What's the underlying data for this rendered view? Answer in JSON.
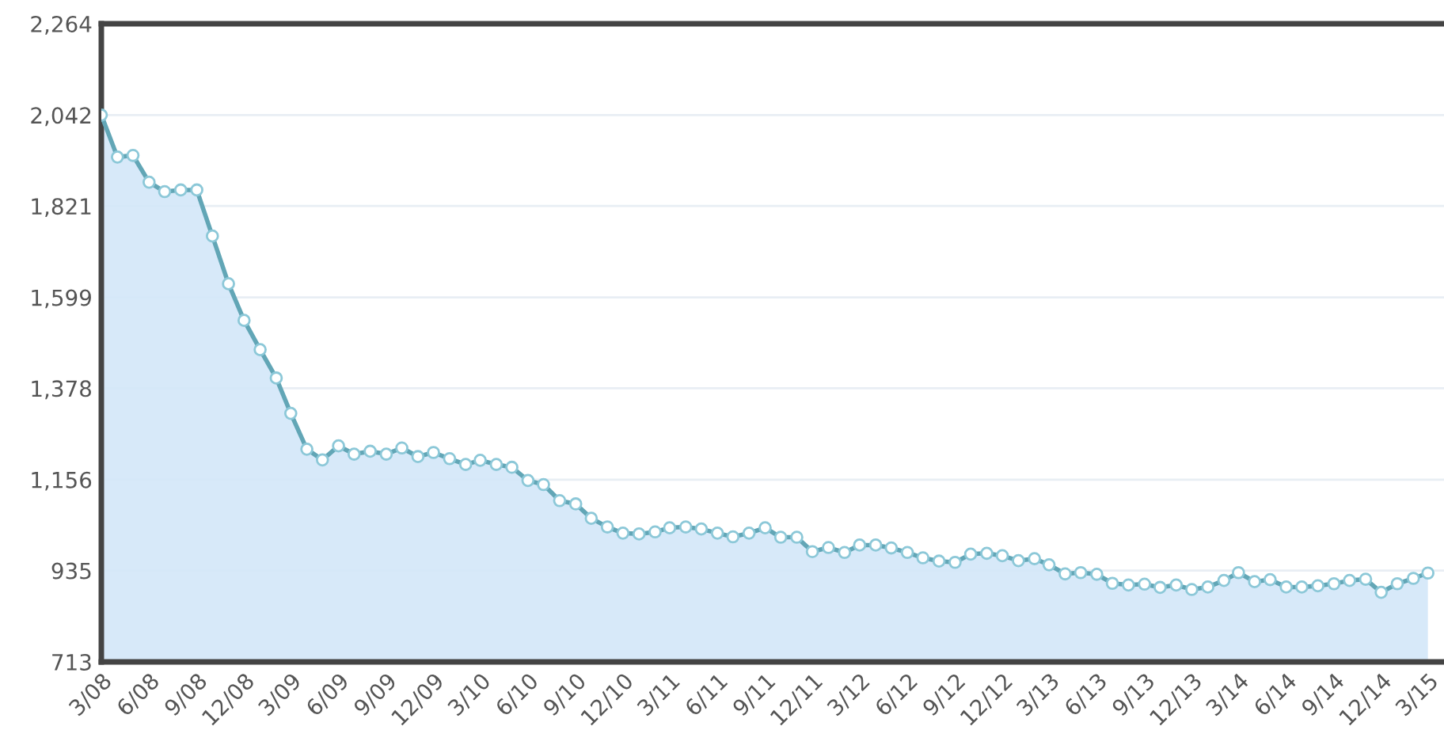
{
  "chart_data": {
    "type": "area",
    "marker": "circle",
    "grid": "y",
    "line_style": "solid",
    "x": [
      "2008-03",
      "2008-04",
      "2008-05",
      "2008-06",
      "2008-07",
      "2008-08",
      "2008-09",
      "2008-10",
      "2008-11",
      "2008-12",
      "2009-01",
      "2009-02",
      "2009-03",
      "2009-04",
      "2009-05",
      "2009-06",
      "2009-07",
      "2009-08",
      "2009-09",
      "2009-10",
      "2009-11",
      "2009-12",
      "2010-01",
      "2010-02",
      "2010-03",
      "2010-04",
      "2010-05",
      "2010-06",
      "2010-07",
      "2010-08",
      "2010-09",
      "2010-10",
      "2010-11",
      "2010-12",
      "2011-01",
      "2011-02",
      "2011-03",
      "2011-04",
      "2011-05",
      "2011-06",
      "2011-07",
      "2011-08",
      "2011-09",
      "2011-10",
      "2011-11",
      "2011-12",
      "2012-01",
      "2012-02",
      "2012-03",
      "2012-04",
      "2012-05",
      "2012-06",
      "2012-07",
      "2012-08",
      "2012-09",
      "2012-10",
      "2012-11",
      "2012-12",
      "2013-01",
      "2013-02",
      "2013-03",
      "2013-04",
      "2013-05",
      "2013-06",
      "2013-07",
      "2013-08",
      "2013-09",
      "2013-10",
      "2013-11",
      "2013-12",
      "2014-01",
      "2014-02",
      "2014-03",
      "2014-04",
      "2014-05",
      "2014-06",
      "2014-07",
      "2014-08",
      "2014-09",
      "2014-10",
      "2014-11",
      "2014-12",
      "2015-01",
      "2015-02",
      "2015-03"
    ],
    "series": [
      {
        "color": "#62a6b6",
        "values": [
          2042,
          1940,
          1944,
          1879,
          1856,
          1860,
          1860,
          1748,
          1632,
          1543,
          1472,
          1403,
          1317,
          1230,
          1204,
          1238,
          1218,
          1225,
          1218,
          1233,
          1212,
          1222,
          1207,
          1193,
          1203,
          1193,
          1186,
          1154,
          1144,
          1105,
          1097,
          1062,
          1041,
          1026,
          1024,
          1029,
          1039,
          1041,
          1036,
          1026,
          1017,
          1026,
          1039,
          1016,
          1016,
          981,
          991,
          979,
          997,
          997,
          990,
          979,
          966,
          958,
          955,
          975,
          977,
          971,
          959,
          964,
          949,
          927,
          930,
          926,
          904,
          900,
          902,
          894,
          900,
          889,
          895,
          911,
          930,
          908,
          913,
          895,
          895,
          898,
          903,
          911,
          914,
          882,
          903,
          916,
          929
        ]
      }
    ],
    "ylim": [
      713,
      2264
    ],
    "yticks": [
      713,
      {
        "value": 935,
        "label": "935"
      },
      {
        "value": 1156,
        "label": "1,156"
      },
      {
        "value": 1378,
        "label": "1,378"
      },
      {
        "value": 1599,
        "label": "1,599"
      },
      {
        "value": 1821,
        "label": "1,821"
      },
      {
        "value": 2042,
        "label": "2,042"
      },
      {
        "value": 2264,
        "label": "2,264"
      }
    ],
    "xlim": [
      "2008-03",
      "2015-04"
    ],
    "xticks": [
      {
        "value": "2008-03",
        "label": "3/08"
      },
      {
        "value": "2008-06",
        "label": "6/08"
      },
      {
        "value": "2008-09",
        "label": "9/08"
      },
      {
        "value": "2008-12",
        "label": "12/08"
      },
      {
        "value": "2009-03",
        "label": "3/09"
      },
      {
        "value": "2009-06",
        "label": "6/09"
      },
      {
        "value": "2009-09",
        "label": "9/09"
      },
      {
        "value": "2009-12",
        "label": "12/09"
      },
      {
        "value": "2010-03",
        "label": "3/10"
      },
      {
        "value": "2010-06",
        "label": "6/10"
      },
      {
        "value": "2010-09",
        "label": "9/10"
      },
      {
        "value": "2010-12",
        "label": "12/10"
      },
      {
        "value": "2011-03",
        "label": "3/11"
      },
      {
        "value": "2011-06",
        "label": "6/11"
      },
      {
        "value": "2011-09",
        "label": "9/11"
      },
      {
        "value": "2011-12",
        "label": "12/11"
      },
      {
        "value": "2012-03",
        "label": "3/12"
      },
      {
        "value": "2012-06",
        "label": "6/12"
      },
      {
        "value": "2012-09",
        "label": "9/12"
      },
      {
        "value": "2012-12",
        "label": "12/12"
      },
      {
        "value": "2013-03",
        "label": "3/13"
      },
      {
        "value": "2013-06",
        "label": "6/13"
      },
      {
        "value": "2013-09",
        "label": "9/13"
      },
      {
        "value": "2013-12",
        "label": "12/13"
      },
      {
        "value": "2014-03",
        "label": "3/14"
      },
      {
        "value": "2014-06",
        "label": "6/14"
      },
      {
        "value": "2014-09",
        "label": "9/14"
      },
      {
        "value": "2014-12",
        "label": "12/14"
      },
      {
        "value": "2015-03",
        "label": "3/15"
      }
    ]
  }
}
